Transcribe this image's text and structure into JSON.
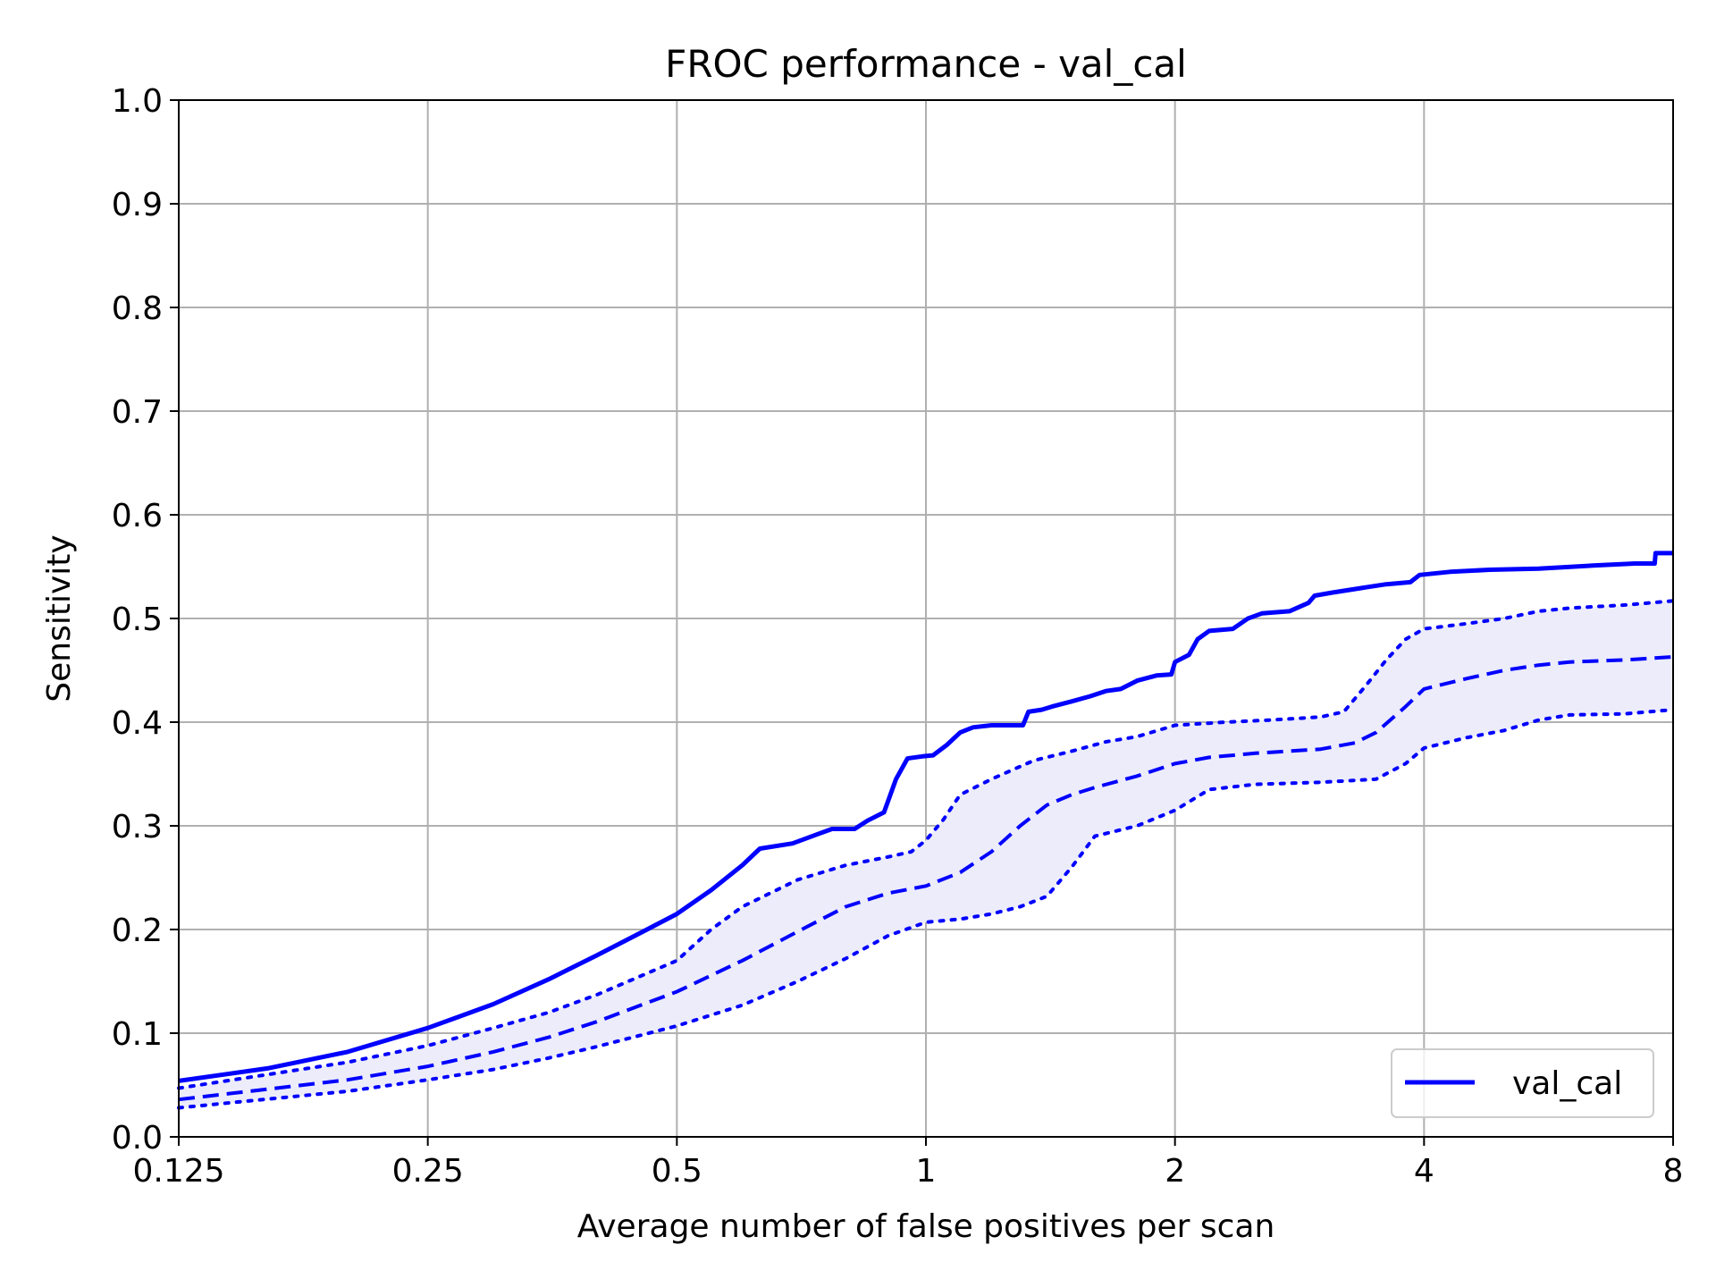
{
  "chart_data": {
    "type": "line",
    "title": "FROC performance - val_cal",
    "xlabel": "Average number of false positives per scan",
    "ylabel": "Sensitivity",
    "x_scale": "log2",
    "xlim": [
      0.125,
      8
    ],
    "ylim": [
      0.0,
      1.0
    ],
    "x_ticks": [
      0.125,
      0.25,
      0.5,
      1,
      2,
      4,
      8
    ],
    "x_tick_labels": [
      "0.125",
      "0.25",
      "0.5",
      "1",
      "2",
      "4",
      "8"
    ],
    "y_ticks": [
      0.0,
      0.1,
      0.2,
      0.3,
      0.4,
      0.5,
      0.6,
      0.7,
      0.8,
      0.9,
      1.0
    ],
    "y_tick_labels": [
      "0.0",
      "0.1",
      "0.2",
      "0.3",
      "0.4",
      "0.5",
      "0.6",
      "0.7",
      "0.8",
      "0.9",
      "1.0"
    ],
    "grid": true,
    "legend_position": "lower-right",
    "colors": {
      "series": "#0000ff",
      "band_fill": "#ececfb",
      "grid": "#b0b0b0"
    },
    "series": [
      {
        "name": "val_cal",
        "style": "solid",
        "points": [
          [
            0.125,
            0.054
          ],
          [
            0.16,
            0.066
          ],
          [
            0.2,
            0.082
          ],
          [
            0.25,
            0.105
          ],
          [
            0.3,
            0.128
          ],
          [
            0.35,
            0.152
          ],
          [
            0.4,
            0.175
          ],
          [
            0.45,
            0.196
          ],
          [
            0.5,
            0.215
          ],
          [
            0.55,
            0.238
          ],
          [
            0.6,
            0.262
          ],
          [
            0.63,
            0.278
          ],
          [
            0.69,
            0.283
          ],
          [
            0.74,
            0.292
          ],
          [
            0.77,
            0.297
          ],
          [
            0.82,
            0.297
          ],
          [
            0.85,
            0.305
          ],
          [
            0.89,
            0.313
          ],
          [
            0.92,
            0.345
          ],
          [
            0.95,
            0.365
          ],
          [
            0.99,
            0.367
          ],
          [
            1.02,
            0.368
          ],
          [
            1.06,
            0.378
          ],
          [
            1.1,
            0.39
          ],
          [
            1.14,
            0.395
          ],
          [
            1.2,
            0.397
          ],
          [
            1.31,
            0.397
          ],
          [
            1.33,
            0.41
          ],
          [
            1.38,
            0.412
          ],
          [
            1.42,
            0.415
          ],
          [
            1.5,
            0.42
          ],
          [
            1.58,
            0.425
          ],
          [
            1.65,
            0.43
          ],
          [
            1.72,
            0.432
          ],
          [
            1.8,
            0.44
          ],
          [
            1.9,
            0.445
          ],
          [
            1.98,
            0.446
          ],
          [
            2.0,
            0.458
          ],
          [
            2.08,
            0.465
          ],
          [
            2.13,
            0.48
          ],
          [
            2.2,
            0.488
          ],
          [
            2.35,
            0.49
          ],
          [
            2.45,
            0.5
          ],
          [
            2.55,
            0.505
          ],
          [
            2.75,
            0.507
          ],
          [
            2.9,
            0.515
          ],
          [
            2.95,
            0.522
          ],
          [
            3.1,
            0.525
          ],
          [
            3.4,
            0.53
          ],
          [
            3.6,
            0.533
          ],
          [
            3.85,
            0.535
          ],
          [
            3.95,
            0.542
          ],
          [
            4.3,
            0.545
          ],
          [
            4.8,
            0.547
          ],
          [
            5.5,
            0.548
          ],
          [
            6.4,
            0.551
          ],
          [
            7.2,
            0.553
          ],
          [
            7.6,
            0.553
          ],
          [
            7.62,
            0.563
          ],
          [
            8,
            0.563
          ]
        ]
      },
      {
        "style": "dashed",
        "points": [
          [
            0.125,
            0.036
          ],
          [
            0.2,
            0.055
          ],
          [
            0.25,
            0.068
          ],
          [
            0.3,
            0.082
          ],
          [
            0.35,
            0.096
          ],
          [
            0.4,
            0.111
          ],
          [
            0.5,
            0.14
          ],
          [
            0.6,
            0.17
          ],
          [
            0.7,
            0.198
          ],
          [
            0.8,
            0.222
          ],
          [
            0.9,
            0.235
          ],
          [
            1.0,
            0.242
          ],
          [
            1.1,
            0.255
          ],
          [
            1.2,
            0.275
          ],
          [
            1.3,
            0.3
          ],
          [
            1.4,
            0.32
          ],
          [
            1.5,
            0.33
          ],
          [
            1.6,
            0.337
          ],
          [
            1.8,
            0.348
          ],
          [
            2.0,
            0.36
          ],
          [
            2.2,
            0.366
          ],
          [
            2.5,
            0.37
          ],
          [
            3.0,
            0.374
          ],
          [
            3.3,
            0.38
          ],
          [
            3.5,
            0.39
          ],
          [
            3.8,
            0.415
          ],
          [
            4.0,
            0.432
          ],
          [
            4.5,
            0.442
          ],
          [
            5.0,
            0.45
          ],
          [
            5.5,
            0.455
          ],
          [
            6.0,
            0.458
          ],
          [
            7.0,
            0.46
          ],
          [
            8.0,
            0.463
          ]
        ]
      },
      {
        "style": "dotted",
        "points": [
          [
            0.125,
            0.047
          ],
          [
            0.2,
            0.072
          ],
          [
            0.25,
            0.088
          ],
          [
            0.3,
            0.105
          ],
          [
            0.35,
            0.12
          ],
          [
            0.4,
            0.137
          ],
          [
            0.5,
            0.17
          ],
          [
            0.55,
            0.2
          ],
          [
            0.6,
            0.222
          ],
          [
            0.7,
            0.248
          ],
          [
            0.8,
            0.262
          ],
          [
            0.9,
            0.27
          ],
          [
            0.96,
            0.275
          ],
          [
            1.0,
            0.286
          ],
          [
            1.05,
            0.306
          ],
          [
            1.1,
            0.33
          ],
          [
            1.2,
            0.345
          ],
          [
            1.35,
            0.363
          ],
          [
            1.5,
            0.372
          ],
          [
            1.65,
            0.381
          ],
          [
            1.8,
            0.386
          ],
          [
            2.0,
            0.397
          ],
          [
            2.3,
            0.4
          ],
          [
            2.6,
            0.402
          ],
          [
            3.0,
            0.405
          ],
          [
            3.2,
            0.41
          ],
          [
            3.4,
            0.435
          ],
          [
            3.6,
            0.46
          ],
          [
            3.8,
            0.48
          ],
          [
            4.0,
            0.49
          ],
          [
            4.5,
            0.495
          ],
          [
            5.0,
            0.5
          ],
          [
            5.5,
            0.507
          ],
          [
            6.0,
            0.51
          ],
          [
            7.0,
            0.513
          ],
          [
            8.0,
            0.517
          ]
        ]
      },
      {
        "style": "dotted",
        "points": [
          [
            0.125,
            0.028
          ],
          [
            0.2,
            0.044
          ],
          [
            0.25,
            0.055
          ],
          [
            0.3,
            0.065
          ],
          [
            0.35,
            0.076
          ],
          [
            0.4,
            0.087
          ],
          [
            0.5,
            0.107
          ],
          [
            0.6,
            0.127
          ],
          [
            0.7,
            0.15
          ],
          [
            0.8,
            0.172
          ],
          [
            0.9,
            0.194
          ],
          [
            1.0,
            0.207
          ],
          [
            1.1,
            0.21
          ],
          [
            1.2,
            0.215
          ],
          [
            1.3,
            0.222
          ],
          [
            1.4,
            0.232
          ],
          [
            1.5,
            0.26
          ],
          [
            1.6,
            0.29
          ],
          [
            1.8,
            0.3
          ],
          [
            2.0,
            0.315
          ],
          [
            2.2,
            0.335
          ],
          [
            2.5,
            0.34
          ],
          [
            3.0,
            0.342
          ],
          [
            3.5,
            0.345
          ],
          [
            3.8,
            0.36
          ],
          [
            4.0,
            0.375
          ],
          [
            4.5,
            0.385
          ],
          [
            5.0,
            0.392
          ],
          [
            5.5,
            0.402
          ],
          [
            6.0,
            0.407
          ],
          [
            7.0,
            0.408
          ],
          [
            8.0,
            0.412
          ]
        ]
      }
    ]
  }
}
